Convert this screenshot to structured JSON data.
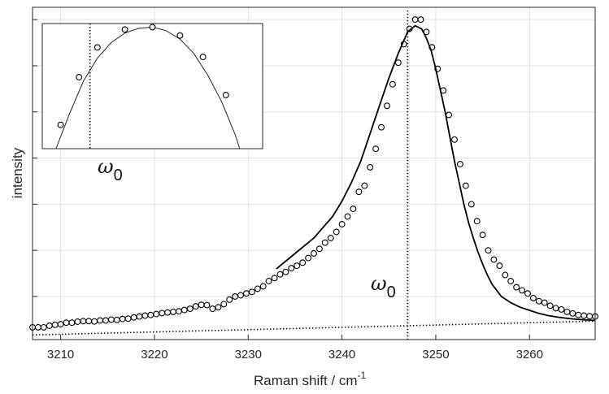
{
  "chart_data": {
    "type": "scatter",
    "xlabel": "Raman shift / cm",
    "xlabel_superscript": "-1",
    "ylabel": "intensity",
    "xlim": [
      3207,
      3267
    ],
    "ylim": [
      -0.04,
      1.04
    ],
    "xticks": [
      3210,
      3220,
      3230,
      3240,
      3250,
      3260
    ],
    "grid": true,
    "yticklabels_shown": false,
    "peak_label": "ω",
    "peak_label_sub": "0",
    "peak_position": 3247,
    "baseline": {
      "style": "dotted",
      "x": [
        3207,
        3267
      ],
      "y": [
        -0.025,
        0.02
      ]
    },
    "fit_curve": {
      "style": "solid",
      "x": [
        3233,
        3235,
        3237,
        3239,
        3240,
        3241,
        3242,
        3243,
        3244,
        3245,
        3246,
        3247,
        3247.8,
        3248.5,
        3249,
        3249.5,
        3250,
        3250.5,
        3251,
        3251.5,
        3252,
        3252.5,
        3253,
        3253.5,
        3254,
        3254.5,
        3255,
        3255.5,
        3256,
        3256.5,
        3257,
        3258,
        3259,
        3260,
        3261,
        3262,
        3263,
        3264,
        3265,
        3266,
        3267
      ],
      "y": [
        0.19,
        0.24,
        0.29,
        0.36,
        0.41,
        0.47,
        0.54,
        0.63,
        0.72,
        0.81,
        0.89,
        0.96,
        0.98,
        0.97,
        0.94,
        0.9,
        0.84,
        0.77,
        0.7,
        0.62,
        0.54,
        0.47,
        0.4,
        0.34,
        0.29,
        0.245,
        0.205,
        0.17,
        0.14,
        0.12,
        0.1,
        0.08,
        0.065,
        0.055,
        0.045,
        0.038,
        0.033,
        0.029,
        0.026,
        0.024,
        0.022
      ]
    },
    "series": [
      {
        "name": "",
        "marker": "open-circle",
        "x": [
          3207.0,
          3207.6,
          3208.2,
          3208.8,
          3209.4,
          3210.0,
          3210.6,
          3211.2,
          3211.8,
          3212.4,
          3213.0,
          3213.6,
          3214.2,
          3214.8,
          3215.4,
          3216.0,
          3216.6,
          3217.2,
          3217.8,
          3218.4,
          3219.0,
          3219.6,
          3220.2,
          3220.8,
          3221.4,
          3222.0,
          3222.6,
          3223.2,
          3223.8,
          3224.4,
          3225.0,
          3225.6,
          3226.2,
          3226.8,
          3227.4,
          3228.0,
          3228.6,
          3229.2,
          3229.8,
          3230.4,
          3231.0,
          3231.6,
          3232.2,
          3232.8,
          3233.4,
          3234.0,
          3234.6,
          3235.2,
          3235.8,
          3236.4,
          3237.0,
          3237.6,
          3238.2,
          3238.8,
          3239.4,
          3240.0,
          3240.6,
          3241.2,
          3241.8,
          3242.4,
          3243.0,
          3243.6,
          3244.2,
          3244.8,
          3245.4,
          3246.0,
          3246.6,
          3247.2,
          3247.8,
          3248.4,
          3249.0,
          3249.6,
          3250.2,
          3250.8,
          3251.4,
          3252.0,
          3252.6,
          3253.2,
          3253.8,
          3254.4,
          3255.0,
          3255.6,
          3256.2,
          3256.8,
          3257.4,
          3258.0,
          3258.6,
          3259.2,
          3259.8,
          3260.4,
          3261.0,
          3261.6,
          3262.2,
          3262.8,
          3263.4,
          3264.0,
          3264.6,
          3265.2,
          3265.8,
          3266.4,
          3267.0
        ],
        "y": [
          0.0,
          0.0,
          0.0,
          0.005,
          0.008,
          0.01,
          0.015,
          0.015,
          0.018,
          0.02,
          0.02,
          0.019,
          0.022,
          0.022,
          0.025,
          0.024,
          0.027,
          0.028,
          0.032,
          0.035,
          0.038,
          0.04,
          0.043,
          0.046,
          0.048,
          0.05,
          0.052,
          0.056,
          0.06,
          0.068,
          0.073,
          0.072,
          0.06,
          0.065,
          0.075,
          0.09,
          0.1,
          0.104,
          0.11,
          0.115,
          0.125,
          0.133,
          0.15,
          0.16,
          0.172,
          0.18,
          0.192,
          0.2,
          0.21,
          0.225,
          0.24,
          0.255,
          0.275,
          0.29,
          0.31,
          0.335,
          0.36,
          0.385,
          0.44,
          0.46,
          0.52,
          0.58,
          0.65,
          0.72,
          0.79,
          0.86,
          0.92,
          0.97,
          1.0,
          1.0,
          0.96,
          0.91,
          0.84,
          0.77,
          0.69,
          0.61,
          0.53,
          0.46,
          0.4,
          0.345,
          0.3,
          0.25,
          0.22,
          0.2,
          0.17,
          0.15,
          0.13,
          0.12,
          0.11,
          0.095,
          0.085,
          0.08,
          0.07,
          0.062,
          0.058,
          0.05,
          0.045,
          0.04,
          0.038,
          0.036,
          0.035
        ]
      }
    ],
    "inset": {
      "xlim": [
        -1.2,
        1.2
      ],
      "ylim": [
        0,
        1.05
      ],
      "marker_line_x": -0.68,
      "label": "ω",
      "label_sub": "0",
      "points": {
        "x": [
          -1.0,
          -0.8,
          -0.6,
          -0.3,
          0.0,
          0.3,
          0.55,
          0.8
        ],
        "y": [
          0.2,
          0.6,
          0.85,
          1.0,
          1.02,
          0.95,
          0.77,
          0.45
        ]
      },
      "curve": {
        "x": [
          -1.05,
          -0.9,
          -0.75,
          -0.6,
          -0.45,
          -0.3,
          -0.15,
          0.0,
          0.15,
          0.3,
          0.45,
          0.6,
          0.75,
          0.9,
          0.95
        ],
        "y": [
          0.0,
          0.3,
          0.57,
          0.76,
          0.89,
          0.97,
          1.01,
          1.02,
          0.99,
          0.92,
          0.8,
          0.62,
          0.4,
          0.12,
          0.0
        ]
      }
    }
  }
}
